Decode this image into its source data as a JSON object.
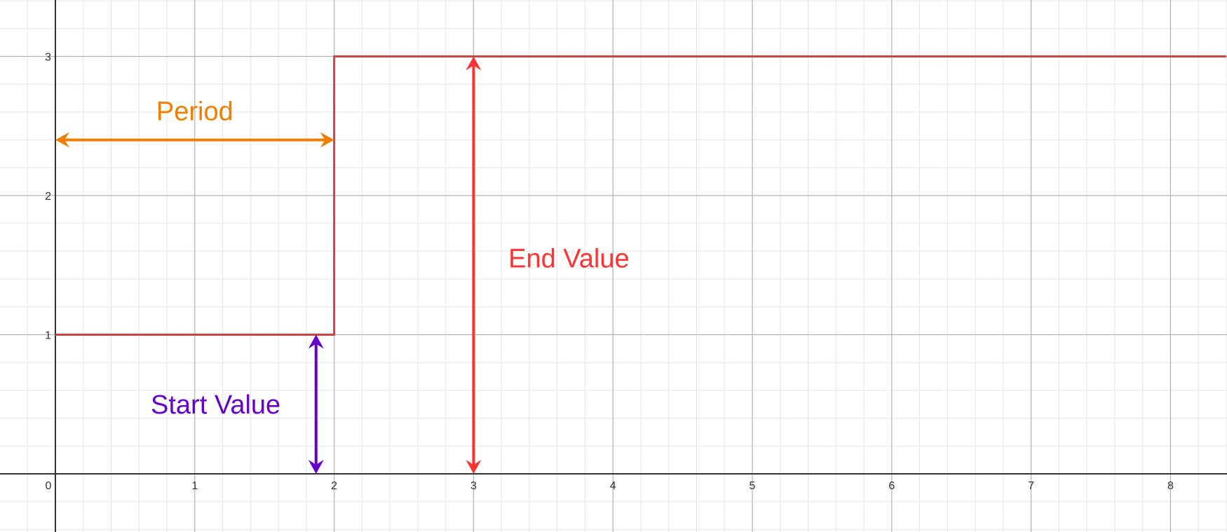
{
  "chart_data": {
    "type": "line",
    "title": "",
    "xlabel": "",
    "ylabel": "",
    "xlim": [
      -0.4,
      8.4
    ],
    "ylim": [
      -0.4,
      3.4
    ],
    "grid": true,
    "x_ticks": [
      "0",
      "1",
      "2",
      "3",
      "4",
      "5",
      "6",
      "7",
      "8"
    ],
    "y_ticks": [
      "1",
      "2",
      "3"
    ],
    "series": [
      {
        "color": "#cc4444",
        "points": [
          [
            0,
            1
          ],
          [
            2,
            1
          ],
          [
            2,
            3
          ],
          [
            8.4,
            3
          ]
        ]
      }
    ],
    "annotations": [
      {
        "label": "Period",
        "color": "#f07f00",
        "from": [
          0,
          2.4
        ],
        "to": [
          2,
          2.4
        ]
      },
      {
        "label": "Start Value",
        "color": "#6600cc",
        "from": [
          1.87,
          0
        ],
        "to": [
          1.87,
          1
        ]
      },
      {
        "label": "End Value",
        "color": "#ff3333",
        "from": [
          3,
          0
        ],
        "to": [
          3,
          3
        ]
      }
    ]
  }
}
